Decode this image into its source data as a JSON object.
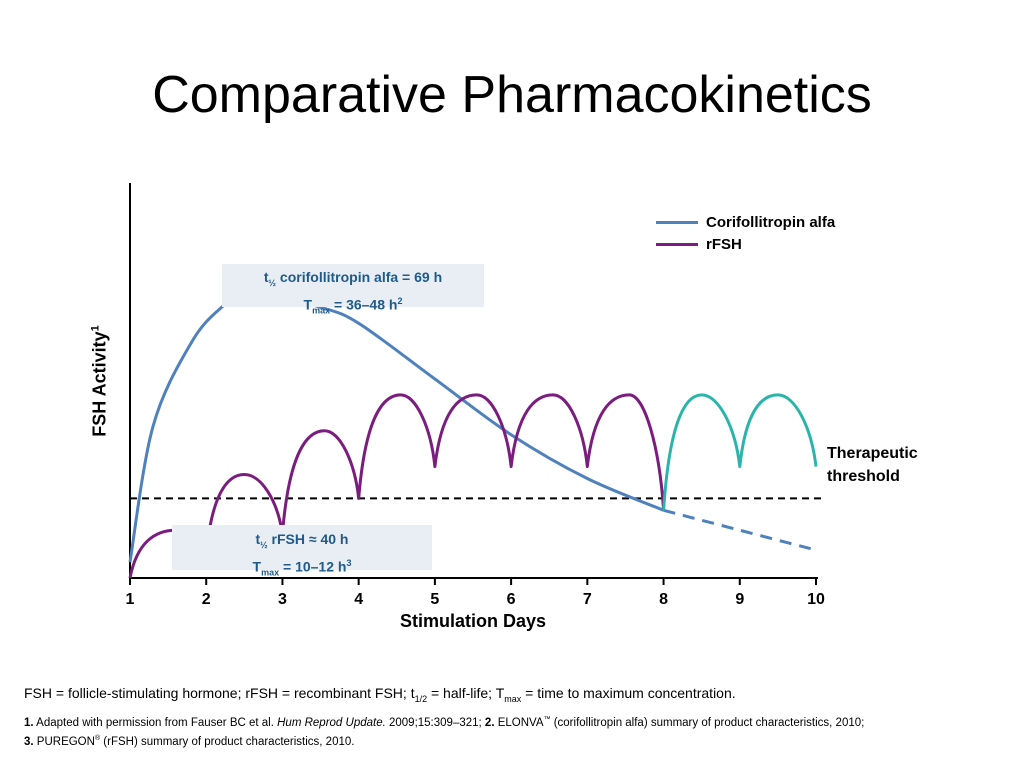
{
  "title": "Comparative Pharmacokinetics",
  "chart_data": {
    "type": "line",
    "title": "Comparative Pharmacokinetics",
    "xlabel": "Stimulation Days",
    "ylabel": "FSH Activity",
    "ylabel_sup": "1",
    "xlim": [
      1,
      10
    ],
    "ylim": [
      0,
      10
    ],
    "x_ticks": [
      "1",
      "2",
      "3",
      "4",
      "5",
      "6",
      "7",
      "8",
      "9",
      "10"
    ],
    "y_ticks_shown": false,
    "threshold": {
      "value": 2.0,
      "label_line1": "Therapeutic",
      "label_line2": "threshold",
      "style": "dashed"
    },
    "legend_position": "top-right",
    "series": [
      {
        "name": "Corifollitropin alfa",
        "color": "#4f81bd",
        "points": [
          [
            1,
            0.4
          ],
          [
            1.3,
            3.8
          ],
          [
            1.8,
            5.9
          ],
          [
            2.2,
            6.8
          ],
          [
            2.5,
            7.1
          ],
          [
            3.0,
            7.0
          ],
          [
            3.5,
            6.8
          ],
          [
            4.0,
            6.4
          ],
          [
            5.0,
            5.0
          ],
          [
            6.0,
            3.6
          ],
          [
            7.0,
            2.5
          ],
          [
            8.0,
            1.7
          ]
        ],
        "extension": {
          "style": "dashed",
          "points": [
            [
              8.0,
              1.7
            ],
            [
              9.0,
              1.2
            ],
            [
              10.0,
              0.7
            ]
          ]
        }
      },
      {
        "name": "rFSH",
        "color": "#7b1d7e",
        "start": [
          1,
          0
        ],
        "doses": [
          {
            "x": 1,
            "peak_x": 1.6,
            "peak": 1.2,
            "next_trough": 0.6
          },
          {
            "x": 2,
            "peak_x": 2.5,
            "peak": 2.6,
            "next_trough": 1.1
          },
          {
            "x": 3,
            "peak_x": 3.55,
            "peak": 3.7,
            "next_trough": 2.0
          },
          {
            "x": 4,
            "peak_x": 4.55,
            "peak": 4.6,
            "next_trough": 2.8
          },
          {
            "x": 5,
            "peak_x": 5.55,
            "peak": 4.6,
            "next_trough": 2.8
          },
          {
            "x": 6,
            "peak_x": 6.55,
            "peak": 4.6,
            "next_trough": 2.8
          },
          {
            "x": 7,
            "peak_x": 7.55,
            "peak": 4.6,
            "next_trough": 1.7
          }
        ]
      },
      {
        "name": "rFSH continuation",
        "color": "#2bb5aa",
        "in_legend": false,
        "start": [
          8,
          1.7
        ],
        "doses": [
          {
            "x": 8,
            "peak_x": 8.5,
            "peak": 4.6,
            "next_trough": 2.8
          },
          {
            "x": 9,
            "peak_x": 9.5,
            "peak": 4.6,
            "next_trough": 2.8
          }
        ]
      }
    ],
    "annotations": [
      {
        "line1_pre": "t",
        "line1_sub": "½",
        "line1_post": " corifollitropin alfa = 69 h",
        "line2_pre": "T",
        "line2_sub": "max",
        "line2_post": " = 36–48 h",
        "line2_sup": "2"
      },
      {
        "line1_pre": "t",
        "line1_sub": "½",
        "line1_post": " rFSH ≈ 40 h",
        "line2_pre": "T",
        "line2_sub": "max",
        "line2_post": " = 10–12 h",
        "line2_sup": "3"
      }
    ]
  },
  "legend": {
    "items": [
      {
        "label": "Corifollitropin alfa",
        "color": "#4f81bd"
      },
      {
        "label": "rFSH",
        "color": "#7b1d7e"
      }
    ]
  },
  "footnote": {
    "p1": "FSH = follicle-stimulating hormone; rFSH = recombinant FSH; t",
    "p1_sub": "1/2",
    "p2": " = half-life; T",
    "p2_sub": "max",
    "p3": " = time to maximum concentration."
  },
  "references": {
    "r1_num": "1.",
    "r1_text": " Adapted with permission from Fauser BC et al. ",
    "r1_journal": "Hum Reprod Update.",
    "r1_cite": " 2009;15:309–321; ",
    "r2_num": "2.",
    "r2_text": " ELONVA",
    "r2_mark": "™",
    "r2_rest": " (corifollitropin alfa) summary of product characteristics, 2010;",
    "r3_num": "3.",
    "r3_text": " PUREGON",
    "r3_mark": "®",
    "r3_rest": " (rFSH) summary of product characteristics, 2010."
  }
}
